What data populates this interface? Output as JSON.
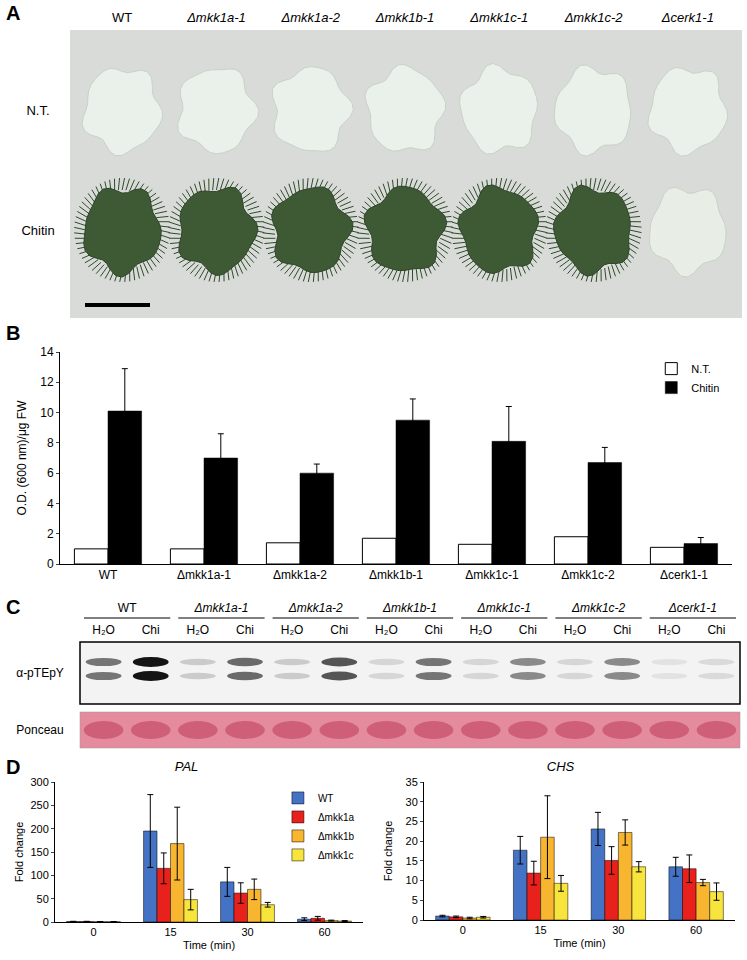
{
  "panel_labels": [
    "A",
    "B",
    "C",
    "D"
  ],
  "panel_a": {
    "columns": [
      "WT",
      "Δmkk1a-1",
      "Δmkk1a-2",
      "Δmkk1b-1",
      "Δmkk1c-1",
      "Δmkk1c-2",
      "Δcerk1-1"
    ],
    "rows": [
      "N.T.",
      "Chitin"
    ]
  },
  "chart_data": [
    {
      "type": "bar",
      "categories": [
        "WT",
        "Δmkk1a-1",
        "Δmkk1a-2",
        "Δmkk1b-1",
        "Δmkk1c-1",
        "Δmkk1c-2",
        "Δcerk1-1"
      ],
      "ylabel": "O.D. (600 nm)/μg FW",
      "ylim": [
        0,
        14
      ],
      "yticks": [
        0,
        2,
        4,
        6,
        8,
        10,
        12,
        14
      ],
      "grid": false,
      "legend": "top right",
      "series": [
        {
          "name": "N.T.",
          "color": "#ffffff",
          "values": [
            1.0,
            1.0,
            1.4,
            1.7,
            1.3,
            1.8,
            1.1
          ]
        },
        {
          "name": "Chitin",
          "color": "#000000",
          "values": [
            10.1,
            7.0,
            6.0,
            9.5,
            8.1,
            6.7,
            1.35
          ],
          "errors": [
            2.8,
            1.6,
            0.6,
            1.4,
            2.3,
            1.0,
            0.4
          ]
        }
      ]
    },
    {
      "type": "bar",
      "title": "PAL",
      "categories": [
        "0",
        "15",
        "30",
        "60"
      ],
      "xlabel": "Time (min)",
      "ylabel": "Fold change",
      "ylim": [
        0,
        300
      ],
      "yticks": [
        0,
        50,
        100,
        150,
        200,
        250,
        300
      ],
      "grid": false,
      "legend": "top right",
      "series": [
        {
          "name": "WT",
          "color": "#4472c4",
          "values": [
            1,
            195,
            86,
            6
          ],
          "errors": [
            0.5,
            78,
            31,
            3
          ]
        },
        {
          "name": "Δmkk1a",
          "color": "#e8211c",
          "values": [
            1,
            115,
            62,
            8
          ],
          "errors": [
            0.5,
            33,
            22,
            4
          ]
        },
        {
          "name": "Δmkk1b",
          "color": "#f7b530",
          "values": [
            0.5,
            168,
            70,
            3
          ],
          "errors": [
            0.5,
            78,
            22,
            1
          ]
        },
        {
          "name": "Δmkk1c",
          "color": "#f7e43c",
          "values": [
            0.5,
            48,
            37,
            2
          ],
          "errors": [
            0.5,
            22,
            5,
            1
          ]
        }
      ]
    },
    {
      "type": "bar",
      "title": "CHS",
      "categories": [
        "0",
        "15",
        "30",
        "60"
      ],
      "xlabel": "Time (min)",
      "ylabel": "Fold change",
      "ylim": [
        0,
        35
      ],
      "yticks": [
        0,
        5,
        10,
        15,
        20,
        25,
        30,
        35
      ],
      "grid": false,
      "series": [
        {
          "name": "WT",
          "color": "#4472c4",
          "values": [
            1,
            17.7,
            23.1,
            13.5
          ],
          "errors": [
            0.2,
            3.5,
            4.2,
            2.4
          ]
        },
        {
          "name": "Δmkk1a",
          "color": "#e8211c",
          "values": [
            0.8,
            11.9,
            15.1,
            13
          ],
          "errors": [
            0.2,
            3,
            3.5,
            3.5
          ]
        },
        {
          "name": "Δmkk1b",
          "color": "#f7b530",
          "values": [
            0.5,
            21,
            22.2,
            9.5
          ],
          "errors": [
            0.2,
            10.5,
            3.2,
            0.8
          ]
        },
        {
          "name": "Δmkk1c",
          "color": "#f7e43c",
          "values": [
            0.7,
            9.3,
            13.5,
            7.2
          ],
          "errors": [
            0.2,
            2,
            1.3,
            2.2
          ]
        }
      ]
    }
  ],
  "panel_c": {
    "genotypes": [
      "WT",
      "Δmkk1a-1",
      "Δmkk1a-2",
      "Δmkk1b-1",
      "Δmkk1c-1",
      "Δmkk1c-2",
      "Δcerk1-1"
    ],
    "treatments": [
      "H₂O",
      "Chi"
    ],
    "rows": [
      "α-pTEpY",
      "Ponceau"
    ]
  }
}
